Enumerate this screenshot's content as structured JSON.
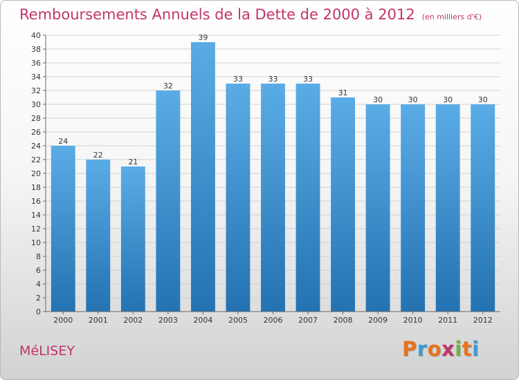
{
  "header": {
    "title": "Remboursements Annuels de la Dette de 2000 à 2012",
    "subtitle": "(en milliers d'€)"
  },
  "footer": {
    "commune": "MéLISEY",
    "logo_letters": [
      "P",
      "r",
      "o",
      "x",
      "i",
      "t",
      "i"
    ],
    "logo_colors": [
      "#e8731e",
      "#3c9bd8",
      "#e8731e",
      "#c2346c",
      "#6db33f",
      "#e8731e",
      "#3c9bd8"
    ]
  },
  "colors": {
    "title": "#c2346c",
    "bar_top": "#5aace6",
    "bar_bottom": "#2472b1",
    "grid": "#d0d0d0"
  },
  "chart_data": {
    "type": "bar",
    "title": "Remboursements Annuels de la Dette de 2000 à 2012",
    "subtitle": "(en milliers d'€)",
    "categories": [
      "2000",
      "2001",
      "2002",
      "2003",
      "2004",
      "2005",
      "2006",
      "2007",
      "2008",
      "2009",
      "2010",
      "2011",
      "2012"
    ],
    "values": [
      24,
      22,
      21,
      32,
      39,
      33,
      33,
      33,
      31,
      30,
      30,
      30,
      30
    ],
    "xlabel": "",
    "ylabel": "",
    "ylim": [
      0,
      40
    ],
    "yticks": [
      0,
      2,
      4,
      6,
      8,
      10,
      12,
      14,
      16,
      18,
      20,
      22,
      24,
      26,
      28,
      30,
      32,
      34,
      36,
      38,
      40
    ],
    "grid": true,
    "legend": "none"
  }
}
